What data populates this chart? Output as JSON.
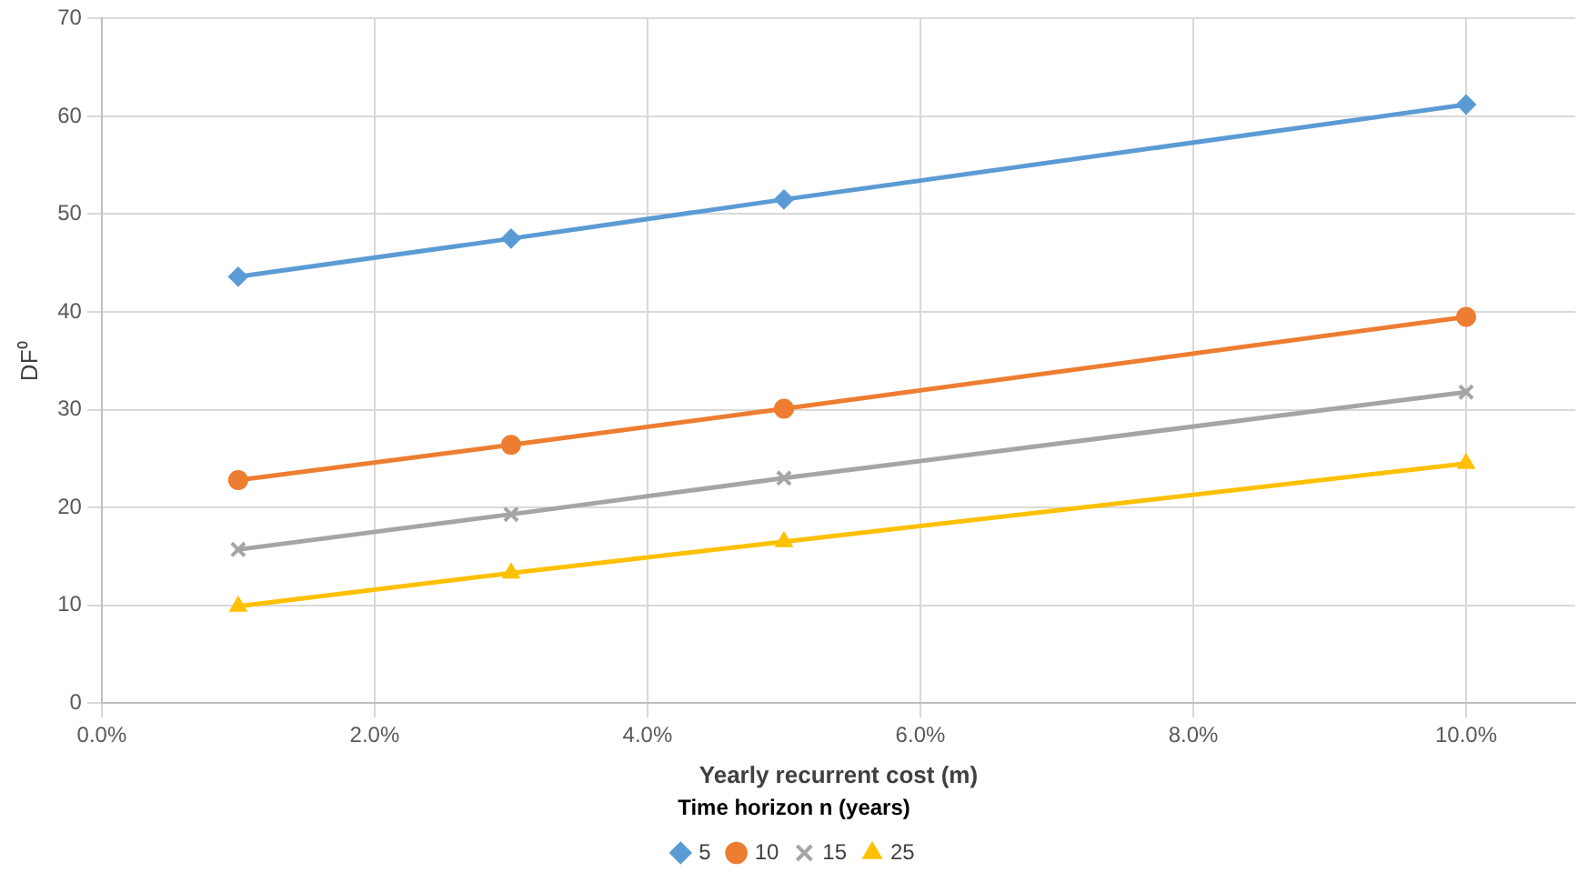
{
  "chart_data": {
    "type": "line",
    "xlabel": "Yearly recurrent cost (m)",
    "ylabel": "DF⁰",
    "legend_title": "Time horizon n (years)",
    "legend": "bottom",
    "grid": true,
    "x": [
      1,
      3,
      5,
      10
    ],
    "xlim": [
      0,
      10.8
    ],
    "xticks": [
      {
        "value": 0,
        "label": "0.0%"
      },
      {
        "value": 2,
        "label": "2.0%"
      },
      {
        "value": 4,
        "label": "4.0%"
      },
      {
        "value": 6,
        "label": "6.0%"
      },
      {
        "value": 8,
        "label": "8.0%"
      },
      {
        "value": 10,
        "label": "10.0%"
      }
    ],
    "ylim": [
      0,
      70
    ],
    "yticks": [
      0,
      10,
      20,
      30,
      40,
      50,
      60,
      70
    ],
    "series": [
      {
        "name": "5",
        "color": "#5b9bd5",
        "marker": "diamond",
        "values": [
          43.6,
          47.5,
          51.5,
          61.2
        ]
      },
      {
        "name": "10",
        "color": "#ed7d31",
        "marker": "circle",
        "values": [
          22.8,
          26.4,
          30.1,
          39.5
        ]
      },
      {
        "name": "15",
        "color": "#a5a5a5",
        "marker": "cross",
        "values": [
          15.7,
          19.3,
          23.0,
          31.8
        ]
      },
      {
        "name": "25",
        "color": "#ffc000",
        "marker": "triangle",
        "values": [
          9.9,
          13.3,
          16.5,
          24.5
        ]
      }
    ]
  }
}
